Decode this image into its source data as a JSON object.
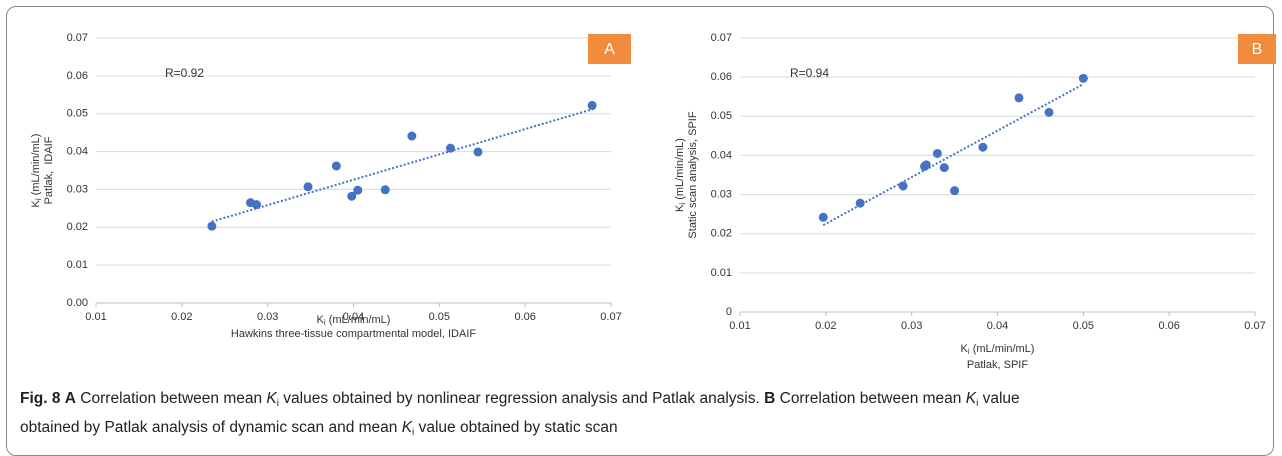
{
  "chart_data": [
    {
      "type": "scatter",
      "panel_label": "A",
      "annotation": "R=0.92",
      "x_label_symbol": "K",
      "x_label_subscript": "i",
      "x_label_unit": " (mL/min/mL)",
      "x_label_2": "Hawkins three-tissue compartmental model, IDAIF",
      "y_label_symbol": "K",
      "y_label_subscript": "i",
      "y_label_unit": " (mL/min/mL)",
      "y_label_2": "Patlak,  IDAIF",
      "x": [
        0.0235,
        0.028,
        0.0287,
        0.0347,
        0.038,
        0.0398,
        0.0405,
        0.0437,
        0.0468,
        0.0513,
        0.0545,
        0.0678
      ],
      "values": [
        0.0203,
        0.0265,
        0.026,
        0.0307,
        0.0362,
        0.0282,
        0.0298,
        0.0299,
        0.0441,
        0.0409,
        0.0399,
        0.0522
      ],
      "trendline": {
        "x": [
          0.0235,
          0.068
        ],
        "y": [
          0.0215,
          0.0513
        ]
      },
      "color": "#4472c4",
      "grid": true,
      "xlim": [
        0.01,
        0.07
      ],
      "xticks": [
        0.01,
        0.02,
        0.03,
        0.04,
        0.05,
        0.06,
        0.07
      ],
      "ylim": [
        0,
        0.07
      ],
      "yticks": [
        {
          "value": 0,
          "label": "0.00"
        },
        0.01,
        0.02,
        0.03,
        0.04,
        0.05,
        0.06,
        0.07
      ]
    },
    {
      "type": "scatter",
      "panel_label": "B",
      "annotation": "R=0.94",
      "x_label_symbol": "K",
      "x_label_subscript": "i",
      "x_label_unit": " (mL/min/mL)",
      "x_label_2": "Patlak, SPIF",
      "y_label_symbol": "K",
      "y_label_subscript": "i",
      "y_label_unit": " (mL/min/mL)",
      "y_label_2": "Static scan analysis, SPIF",
      "x": [
        0.0197,
        0.024,
        0.029,
        0.0315,
        0.0317,
        0.033,
        0.0338,
        0.035,
        0.0383,
        0.0425,
        0.046,
        0.05
      ],
      "values": [
        0.0242,
        0.0278,
        0.0322,
        0.0372,
        0.0376,
        0.0405,
        0.0369,
        0.031,
        0.0421,
        0.0547,
        0.051,
        0.0597
      ],
      "trendline": {
        "x": [
          0.0197,
          0.05
        ],
        "y": [
          0.0222,
          0.0582
        ]
      },
      "color": "#4472c4",
      "grid": true,
      "xlim": [
        0.01,
        0.07
      ],
      "xticks": [
        0.01,
        0.02,
        0.03,
        0.04,
        0.05,
        0.06,
        0.07
      ],
      "ylim": [
        0,
        0.07
      ],
      "yticks": [
        0,
        0.01,
        0.02,
        0.03,
        0.04,
        0.05,
        0.06,
        0.07
      ]
    }
  ],
  "caption": [
    [
      {
        "text": "Fig. 8",
        "style": "bold"
      },
      {
        "text": " ",
        "style": "normal"
      },
      {
        "text": "A",
        "style": "bold"
      },
      {
        "text": " Correlation between mean ",
        "style": "normal"
      },
      {
        "text": "K",
        "style": "italic"
      },
      {
        "text": "i",
        "style": "sub"
      },
      {
        "text": " values obtained by nonlinear regression analysis and Patlak analysis. ",
        "style": "normal"
      },
      {
        "text": "B",
        "style": "bold"
      },
      {
        "text": " Correlation between mean ",
        "style": "normal"
      },
      {
        "text": "K",
        "style": "italic"
      },
      {
        "text": "i",
        "style": "sub"
      },
      {
        "text": " value",
        "style": "normal"
      }
    ],
    [
      {
        "text": "obtained by Patlak analysis of dynamic scan and mean ",
        "style": "normal"
      },
      {
        "text": "K",
        "style": "italic"
      },
      {
        "text": "i",
        "style": "sub"
      },
      {
        "text": " value obtained by static scan",
        "style": "normal"
      }
    ]
  ]
}
